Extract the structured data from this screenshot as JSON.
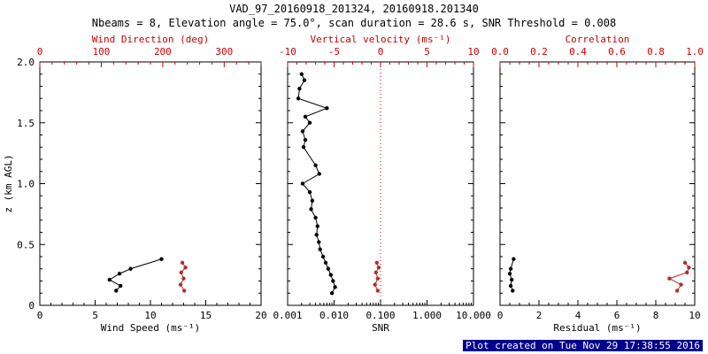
{
  "header": {
    "title": "VAD_97_20160918_201324, 20160918.201340",
    "subtitle": "Nbeams = 8, Elevation angle = 75.0°, scan duration = 28.6 s, SNR Threshold = 0.008"
  },
  "footer": {
    "created": "Plot created on Tue Nov 29 17:38:55 2016"
  },
  "colors": {
    "axis_red": "#cc0000",
    "series_red": "#b03028",
    "black": "#000000",
    "footer_bg": "#00008b",
    "footer_fg": "#ffffff"
  },
  "chart_data": {
    "type": "scatter",
    "y_axis": {
      "label": "z (km AGL)",
      "min": 0,
      "max": 2,
      "ticks": [
        0,
        0.5,
        1,
        1.5,
        2
      ],
      "tick_labels": [
        "0",
        "0.5",
        "1.0",
        "1.5",
        "2.0"
      ],
      "minor_step": 0.1
    },
    "panels": [
      {
        "name": "wind-panel",
        "bottom_axis": {
          "label": "Wind Speed (ms⁻¹)",
          "min": 0,
          "max": 20,
          "scale": "linear",
          "ticks": [
            0,
            5,
            10,
            15,
            20
          ],
          "tick_labels": [
            "0",
            "5",
            "10",
            "15",
            "20"
          ],
          "minor_step": 1
        },
        "top_axis": {
          "label": "Wind Direction (deg)",
          "min": 0,
          "max": 360,
          "scale": "linear",
          "ticks": [
            0,
            100,
            200,
            300
          ],
          "tick_labels": [
            "0",
            "100",
            "200",
            "300"
          ],
          "minor_step": 20
        },
        "series": [
          {
            "name": "wind-speed",
            "axis": "bottom",
            "color": "black",
            "points": [
              [
                11.0,
                0.38
              ],
              [
                8.2,
                0.3
              ],
              [
                7.2,
                0.26
              ],
              [
                6.3,
                0.21
              ],
              [
                7.3,
                0.16
              ],
              [
                6.9,
                0.12
              ]
            ]
          },
          {
            "name": "wind-direction",
            "axis": "top",
            "color": "red",
            "points": [
              [
                232,
                0.35
              ],
              [
                237,
                0.31
              ],
              [
                230,
                0.27
              ],
              [
                234,
                0.22
              ],
              [
                229,
                0.17
              ],
              [
                235,
                0.12
              ]
            ]
          }
        ]
      },
      {
        "name": "snr-panel",
        "bottom_axis": {
          "label": "SNR",
          "min": 0.001,
          "max": 10,
          "scale": "log",
          "ticks": [
            0.001,
            0.01,
            0.1,
            1,
            10
          ],
          "tick_labels": [
            "0.001",
            "0.010",
            "0.100",
            "1.000",
            "10.000"
          ]
        },
        "top_axis": {
          "label": "Vertical velocity (ms⁻¹)",
          "min": -10,
          "max": 10,
          "scale": "linear",
          "ticks": [
            -10,
            -5,
            0,
            5,
            10
          ],
          "tick_labels": [
            "-10",
            "-5",
            "0",
            "5",
            "10"
          ],
          "minor_step": 1
        },
        "reference_line": {
          "axis": "top",
          "value": 0
        },
        "series": [
          {
            "name": "snr",
            "axis": "bottom",
            "color": "black",
            "points": [
              [
                0.002,
                1.9
              ],
              [
                0.0023,
                1.85
              ],
              [
                0.0018,
                1.78
              ],
              [
                0.0017,
                1.7
              ],
              [
                0.007,
                1.62
              ],
              [
                0.0024,
                1.55
              ],
              [
                0.003,
                1.5
              ],
              [
                0.0021,
                1.43
              ],
              [
                0.0024,
                1.36
              ],
              [
                0.0022,
                1.3
              ],
              [
                0.004,
                1.15
              ],
              [
                0.0048,
                1.08
              ],
              [
                0.0021,
                1.0
              ],
              [
                0.003,
                0.93
              ],
              [
                0.0034,
                0.86
              ],
              [
                0.0032,
                0.79
              ],
              [
                0.004,
                0.72
              ],
              [
                0.0044,
                0.65
              ],
              [
                0.0042,
                0.58
              ],
              [
                0.0047,
                0.52
              ],
              [
                0.005,
                0.46
              ],
              [
                0.0058,
                0.4
              ],
              [
                0.0066,
                0.35
              ],
              [
                0.0075,
                0.3
              ],
              [
                0.0085,
                0.25
              ],
              [
                0.0095,
                0.2
              ],
              [
                0.0105,
                0.15
              ],
              [
                0.009,
                0.1
              ]
            ]
          },
          {
            "name": "vertical-velocity",
            "axis": "top",
            "color": "red",
            "points": [
              [
                -0.4,
                0.35
              ],
              [
                -0.2,
                0.31
              ],
              [
                -0.5,
                0.27
              ],
              [
                -0.3,
                0.22
              ],
              [
                -0.6,
                0.17
              ],
              [
                -0.3,
                0.12
              ]
            ]
          }
        ]
      },
      {
        "name": "residual-panel",
        "bottom_axis": {
          "label": "Residual (ms⁻¹)",
          "min": 0,
          "max": 10,
          "scale": "linear",
          "ticks": [
            0,
            2,
            4,
            6,
            8,
            10
          ],
          "tick_labels": [
            "0",
            "2",
            "4",
            "6",
            "8",
            "10"
          ],
          "minor_step": 0.5
        },
        "top_axis": {
          "label": "Correlation",
          "min": 0,
          "max": 1,
          "scale": "linear",
          "ticks": [
            0,
            0.2,
            0.4,
            0.6,
            0.8,
            1
          ],
          "tick_labels": [
            "0.0",
            "0.2",
            "0.4",
            "0.6",
            "0.8",
            "1.0"
          ],
          "minor_step": 0.05
        },
        "series": [
          {
            "name": "residual",
            "axis": "bottom",
            "color": "black",
            "points": [
              [
                0.7,
                0.38
              ],
              [
                0.55,
                0.3
              ],
              [
                0.5,
                0.26
              ],
              [
                0.6,
                0.21
              ],
              [
                0.55,
                0.16
              ],
              [
                0.65,
                0.12
              ]
            ]
          },
          {
            "name": "correlation",
            "axis": "top",
            "color": "red",
            "points": [
              [
                0.95,
                0.35
              ],
              [
                0.97,
                0.31
              ],
              [
                0.96,
                0.27
              ],
              [
                0.87,
                0.22
              ],
              [
                0.93,
                0.17
              ],
              [
                0.91,
                0.12
              ]
            ]
          }
        ]
      }
    ]
  }
}
